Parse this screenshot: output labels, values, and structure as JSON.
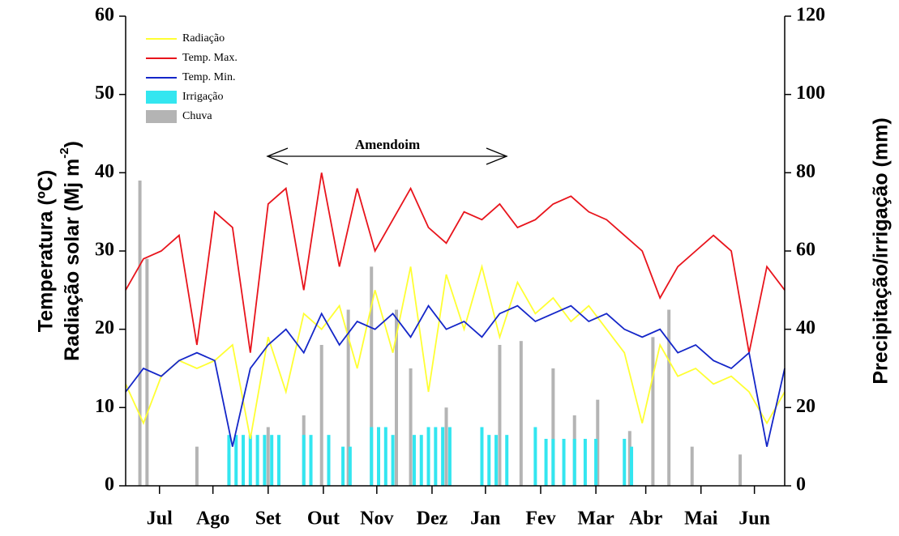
{
  "chart_data": {
    "type": "line",
    "annotation": "Amendoim",
    "y_label_line1": "Temperatura (ºC)",
    "y_label_line2": "Radiação solar (Mj m",
    "y_label_sup": "-2",
    "y_label_end": ")",
    "y2_label": "Precipitação/irrigação (mm)",
    "legend": "upper left",
    "xlim": [
      0,
      370
    ],
    "xticks": [
      {
        "value": 19,
        "label": "Jul"
      },
      {
        "value": 49,
        "label": "Ago"
      },
      {
        "value": 80,
        "label": "Set"
      },
      {
        "value": 111,
        "label": "Out"
      },
      {
        "value": 141,
        "label": "Nov"
      },
      {
        "value": 172,
        "label": "Dez"
      },
      {
        "value": 202,
        "label": "Jan"
      },
      {
        "value": 233,
        "label": "Fev"
      },
      {
        "value": 264,
        "label": "Mar"
      },
      {
        "value": 292,
        "label": "Abr"
      },
      {
        "value": 323,
        "label": "Mai"
      },
      {
        "value": 353,
        "label": "Jun"
      }
    ],
    "ylim": [
      0,
      60
    ],
    "yticks": [
      0,
      10,
      20,
      30,
      40,
      50,
      60
    ],
    "y2lim": [
      0,
      120
    ],
    "y2ticks": [
      0,
      20,
      40,
      60,
      80,
      100,
      120
    ],
    "x": [
      0,
      10,
      20,
      30,
      40,
      50,
      60,
      70,
      80,
      90,
      100,
      110,
      120,
      130,
      140,
      150,
      160,
      170,
      180,
      190,
      200,
      210,
      220,
      230,
      240,
      250,
      260,
      270,
      280,
      290,
      300,
      310,
      320,
      330,
      340,
      350,
      360,
      370
    ],
    "series": [
      {
        "name": "Radiação",
        "color": "#ffff33",
        "values": [
          13,
          8,
          14,
          16,
          15,
          16,
          18,
          6,
          19,
          12,
          22,
          20,
          23,
          15,
          25,
          17,
          28,
          12,
          27,
          20,
          28,
          19,
          26,
          22,
          24,
          21,
          23,
          20,
          17,
          8,
          18,
          14,
          15,
          13,
          14,
          12,
          8,
          12
        ]
      },
      {
        "name": "Temp. Max.",
        "color": "#e8141c",
        "values": [
          25,
          29,
          30,
          32,
          18,
          35,
          33,
          17,
          36,
          38,
          25,
          40,
          28,
          38,
          30,
          34,
          38,
          33,
          31,
          35,
          34,
          36,
          33,
          34,
          36,
          37,
          35,
          34,
          32,
          30,
          24,
          28,
          30,
          32,
          30,
          17,
          28,
          25
        ]
      },
      {
        "name": "Temp. Min.",
        "color": "#1426c8",
        "values": [
          12,
          15,
          14,
          16,
          17,
          16,
          5,
          15,
          18,
          20,
          17,
          22,
          18,
          21,
          20,
          22,
          19,
          23,
          20,
          21,
          19,
          22,
          23,
          21,
          22,
          23,
          21,
          22,
          20,
          19,
          20,
          17,
          18,
          16,
          15,
          17,
          5,
          15
        ]
      }
    ],
    "bars": [
      {
        "name": "Irrigação",
        "color": "#33e6f0",
        "axis": "y2",
        "x": [
          58,
          62,
          66,
          70,
          74,
          78,
          82,
          86,
          100,
          104,
          114,
          122,
          126,
          138,
          142,
          146,
          150,
          162,
          166,
          170,
          174,
          178,
          182,
          200,
          204,
          208,
          214,
          230,
          236,
          240,
          246,
          252,
          258,
          264,
          280,
          284
        ],
        "values": [
          13,
          13,
          13,
          13,
          13,
          13,
          13,
          13,
          13,
          13,
          13,
          10,
          10,
          15,
          15,
          15,
          13,
          13,
          13,
          15,
          15,
          15,
          15,
          15,
          13,
          13,
          13,
          15,
          12,
          12,
          12,
          12,
          12,
          12,
          12,
          10
        ]
      },
      {
        "name": "Chuva",
        "color": "#b4b4b4",
        "axis": "y2",
        "x": [
          8,
          12,
          40,
          58,
          80,
          100,
          110,
          125,
          138,
          152,
          160,
          180,
          210,
          222,
          240,
          252,
          265,
          283,
          296,
          305,
          318,
          345
        ],
        "values": [
          78,
          58,
          10,
          8,
          15,
          18,
          36,
          45,
          56,
          45,
          30,
          20,
          36,
          37,
          30,
          18,
          22,
          14,
          38,
          45,
          10,
          8
        ]
      }
    ]
  }
}
